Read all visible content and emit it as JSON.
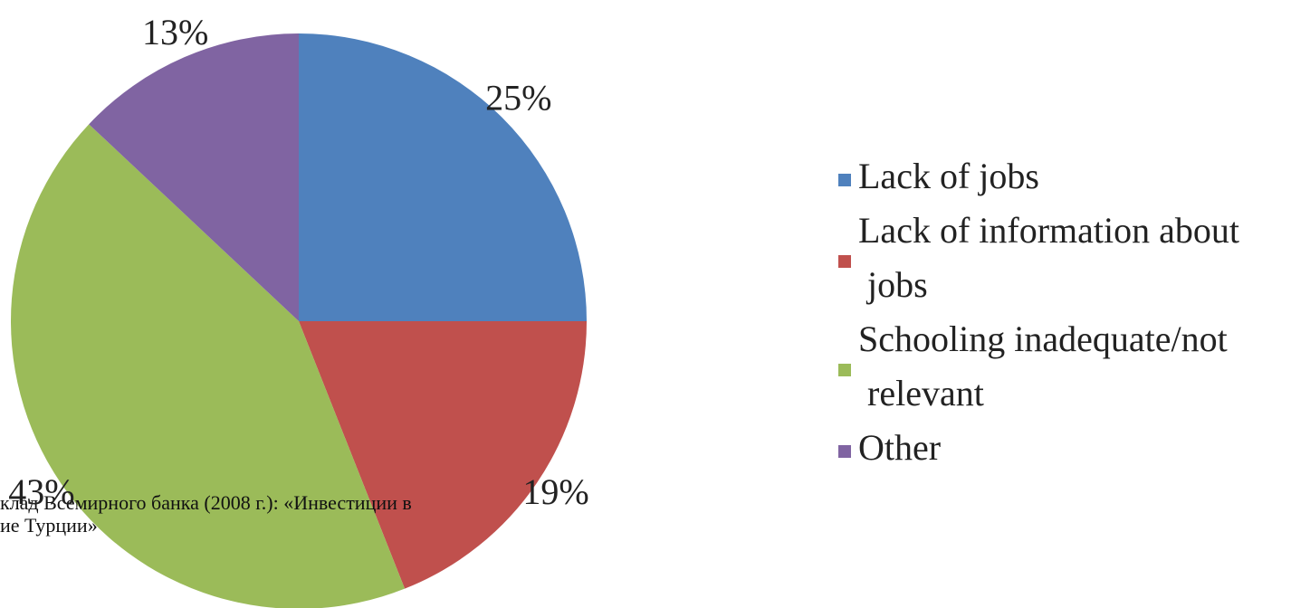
{
  "chart_data": {
    "type": "pie",
    "categories": [
      "Lack of jobs",
      "Lack of information about jobs",
      "Schooling inadequate/not relevant",
      "Other"
    ],
    "values": [
      25,
      19,
      43,
      13
    ],
    "value_labels": [
      "25%",
      "19%",
      "43%",
      "13%"
    ],
    "colors": [
      "#4f81bd",
      "#c0504d",
      "#9bbb59",
      "#8064a2"
    ],
    "legend": "right",
    "annotations": [
      "клад Всемирного банка (2008 г.): «Инвестиции в",
      "ие Турции»"
    ]
  }
}
